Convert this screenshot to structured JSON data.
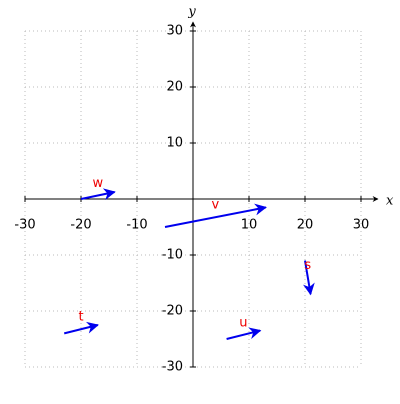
{
  "chart_data": {
    "type": "vector",
    "x_label": "x",
    "y_label": "y",
    "xlim": [
      -30,
      30
    ],
    "ylim": [
      -30,
      30
    ],
    "xticks": [
      -30,
      -20,
      -10,
      10,
      20,
      30
    ],
    "yticks": [
      -30,
      -20,
      -10,
      10,
      20,
      30
    ],
    "grid": true,
    "vector_color": "#0000ee",
    "label_color": "#ee0000",
    "series": [
      {
        "name": "w",
        "x": [
          -20,
          -14
        ],
        "y": [
          0,
          1.25
        ]
      },
      {
        "name": "v",
        "x": [
          -5,
          13
        ],
        "y": [
          -5,
          -1.5
        ]
      },
      {
        "name": "s",
        "x": [
          20,
          21
        ],
        "y": [
          -11,
          -17
        ]
      },
      {
        "name": "t",
        "x": [
          -23,
          -17
        ],
        "y": [
          -24,
          -22.5
        ]
      },
      {
        "name": "u",
        "x": [
          6,
          12
        ],
        "y": [
          -25,
          -23.5
        ]
      }
    ]
  }
}
